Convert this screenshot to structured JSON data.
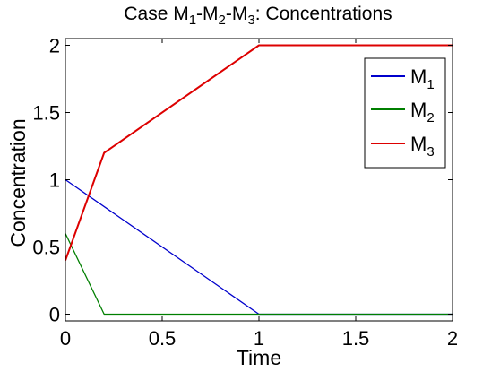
{
  "chart_data": {
    "type": "line",
    "title": "Case M1-M2-M3: Concentrations",
    "title_parts": {
      "prefix": "Case M",
      "sub1": "1",
      "sep1": "-M",
      "sub2": "2",
      "sep2": "-M",
      "sub3": "3",
      "suffix": ": Concentrations"
    },
    "xlabel": "Time",
    "ylabel": "Concentration",
    "xlim": [
      0,
      2
    ],
    "ylim": [
      -0.05,
      2.05
    ],
    "xticks": [
      0,
      0.5,
      1,
      1.5,
      2
    ],
    "xtick_labels": [
      "0",
      "0.5",
      "1",
      "1.5",
      "2"
    ],
    "yticks": [
      0,
      0.5,
      1,
      1.5,
      2
    ],
    "ytick_labels": [
      "0",
      "0.5",
      "1",
      "1.5",
      "2"
    ],
    "grid": false,
    "legend_position": "top-right",
    "series": [
      {
        "name": "M1",
        "label_main": "M",
        "label_sub": "1",
        "color": "#0000cc",
        "x": [
          0,
          1,
          2
        ],
        "y": [
          1.0,
          0.0,
          0.0
        ]
      },
      {
        "name": "M2",
        "label_main": "M",
        "label_sub": "2",
        "color": "#007f00",
        "x": [
          0,
          0.2,
          2
        ],
        "y": [
          0.6,
          0.0,
          0.0
        ]
      },
      {
        "name": "M3",
        "label_main": "M",
        "label_sub": "3",
        "color": "#dd0000",
        "x": [
          0,
          0.2,
          1,
          2
        ],
        "y": [
          0.4,
          1.2,
          2.0,
          2.0
        ]
      }
    ]
  }
}
